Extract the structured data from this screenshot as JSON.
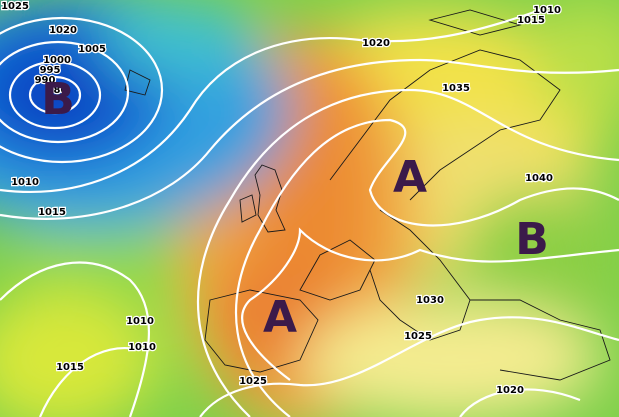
{
  "isobar_labels": [
    "1025",
    "1020",
    "1005",
    "1000",
    "995",
    "990",
    "980",
    "1010",
    "1015",
    "1020",
    "1035",
    "1010",
    "1015",
    "1040",
    "1030",
    "1025",
    "1010",
    "1010",
    "1015",
    "1025",
    "1020"
  ],
  "pressure_centers": [
    "B",
    "A",
    "B",
    "A"
  ]
}
